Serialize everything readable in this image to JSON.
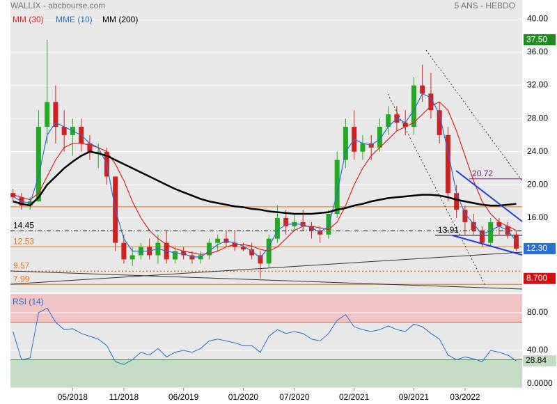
{
  "chart_data": {
    "type": "candlestick",
    "title": "WALLIX - abcbourse.com",
    "subtitle": "5 ANS - HEBDO",
    "xlim": [
      -0.3,
      59.7
    ],
    "xticks": [
      {
        "value": 7,
        "label": "05/2018"
      },
      {
        "value": 13,
        "label": "11/2018"
      },
      {
        "value": 20,
        "label": "06/2019"
      },
      {
        "value": 27,
        "label": "01/2020"
      },
      {
        "value": 33,
        "label": "07/2020"
      },
      {
        "value": 40,
        "label": "02/2021"
      },
      {
        "value": 47,
        "label": "09/2021"
      },
      {
        "value": 53,
        "label": "03/2022"
      }
    ],
    "ylim": [
      7.0,
      42.3
    ],
    "yticks": [
      {
        "value": 16,
        "label": "16.00"
      },
      {
        "value": 20,
        "label": "20.00"
      },
      {
        "value": 24,
        "label": "24.00"
      },
      {
        "value": 28,
        "label": "28.00"
      },
      {
        "value": 32,
        "label": "32.00"
      },
      {
        "value": 36,
        "label": "36.00"
      },
      {
        "value": 40,
        "label": "40.00"
      }
    ],
    "up_color": "#22aa22",
    "down_color": "#cc2222",
    "candles": [
      [
        19,
        19.5,
        18,
        18.5
      ],
      [
        18.5,
        19,
        17,
        17.5
      ],
      [
        17.5,
        18.5,
        17,
        18
      ],
      [
        18,
        29,
        18,
        27
      ],
      [
        27,
        37.5,
        25,
        30
      ],
      [
        30,
        32,
        25,
        27
      ],
      [
        27,
        29,
        24,
        26
      ],
      [
        26,
        28,
        23.5,
        27
      ],
      [
        27,
        28,
        24,
        25
      ],
      [
        25,
        26,
        23,
        24
      ],
      [
        24,
        25,
        22,
        24
      ],
      [
        24,
        24.5,
        20,
        21
      ],
      [
        21,
        21,
        12,
        13
      ],
      [
        13,
        14,
        10.5,
        11
      ],
      [
        11,
        12.5,
        10.2,
        11.5
      ],
      [
        11.5,
        13,
        11,
        12.5
      ],
      [
        12.5,
        13.5,
        11,
        11.5
      ],
      [
        11.5,
        14,
        10.5,
        13
      ],
      [
        13,
        14.5,
        10.5,
        11
      ],
      [
        11,
        12.5,
        10.5,
        12
      ],
      [
        12,
        12.5,
        11,
        11.5
      ],
      [
        11.5,
        12,
        10.5,
        11
      ],
      [
        11,
        12,
        10.5,
        11.5
      ],
      [
        11.5,
        13.5,
        11,
        13
      ],
      [
        13,
        14,
        12,
        13.5
      ],
      [
        13.5,
        14.5,
        12.5,
        13
      ],
      [
        13,
        14.5,
        12,
        12.5
      ],
      [
        12.5,
        13,
        12,
        12.2
      ],
      [
        12.2,
        13,
        11,
        11.5
      ],
      [
        11.5,
        12,
        8.7,
        10.5
      ],
      [
        10.5,
        14,
        10,
        13.5
      ],
      [
        13.5,
        17.5,
        13,
        16
      ],
      [
        16,
        17,
        14,
        15
      ],
      [
        15,
        16.5,
        14.5,
        15.5
      ],
      [
        15.5,
        17,
        14.5,
        15
      ],
      [
        15,
        15.5,
        13.5,
        14.5
      ],
      [
        14.5,
        15,
        13,
        14
      ],
      [
        14,
        17,
        13.5,
        16.5
      ],
      [
        16.5,
        24,
        16,
        23
      ],
      [
        23,
        28,
        22,
        27
      ],
      [
        27,
        29,
        23,
        24
      ],
      [
        24,
        26,
        23,
        25
      ],
      [
        25,
        26,
        23,
        24.5
      ],
      [
        24.5,
        28,
        24,
        27
      ],
      [
        27,
        29.5,
        26,
        28.5
      ],
      [
        28.5,
        29.5,
        26.5,
        27.5
      ],
      [
        27.5,
        29,
        26,
        27
      ],
      [
        27,
        33,
        26,
        32
      ],
      [
        32,
        34.5,
        30,
        31
      ],
      [
        31,
        33.5,
        28,
        29
      ],
      [
        29,
        30,
        25,
        26
      ],
      [
        26,
        27,
        18,
        19
      ],
      [
        19,
        20,
        16,
        17
      ],
      [
        17,
        17.5,
        14,
        15.5
      ],
      [
        15.5,
        16.5,
        14,
        14.5
      ],
      [
        14.5,
        15,
        12.5,
        13
      ],
      [
        13,
        16,
        12.5,
        15.5
      ],
      [
        15.5,
        16,
        14,
        15
      ],
      [
        15,
        15.5,
        13.5,
        14
      ],
      [
        14,
        14.5,
        12,
        12.3
      ]
    ],
    "series": [
      {
        "name": "MM (30)",
        "color": "#e02020",
        "values": [
          18.8,
          18.5,
          18.2,
          19,
          21,
          23,
          24.5,
          25,
          25,
          24.8,
          24.5,
          24,
          22.5,
          20.5,
          18,
          16,
          14.5,
          13.5,
          12.8,
          12.3,
          12,
          11.8,
          11.6,
          11.7,
          12,
          12.5,
          12.8,
          12.8,
          12.6,
          12.2,
          12,
          12.5,
          13.5,
          14.5,
          15,
          15,
          14.8,
          14.6,
          15.5,
          17.5,
          20,
          22,
          23.5,
          24.5,
          25.5,
          26.5,
          27,
          27.5,
          28.5,
          29.5,
          30,
          29,
          26.5,
          23.5,
          20.5,
          18,
          16.5,
          15.5,
          15,
          14.5
        ]
      },
      {
        "name": "MME (10)",
        "color": "#2a6fd0",
        "values": [
          18.6,
          18,
          17.8,
          21,
          26,
          27.5,
          27,
          26.5,
          26,
          25,
          24.5,
          22.5,
          17,
          13.5,
          12,
          12,
          12,
          12.3,
          12,
          11.8,
          11.7,
          11.3,
          11.3,
          12,
          12.8,
          13.2,
          13,
          12.6,
          12,
          11.2,
          12.5,
          14.5,
          15.2,
          15.3,
          15.2,
          14.8,
          14.3,
          15,
          19,
          24,
          25.5,
          25,
          24.8,
          25.5,
          27,
          28,
          27.5,
          29,
          31,
          30.5,
          28.5,
          24,
          19,
          16.5,
          15.3,
          14,
          14.5,
          15,
          14.5,
          13.2
        ]
      },
      {
        "name": "MM (200)",
        "color": "#000000",
        "values": [
          18,
          17.7,
          17.5,
          18.5,
          20,
          21,
          22,
          22.8,
          23.5,
          24,
          23.8,
          23.5,
          23,
          22.5,
          22,
          21.5,
          21,
          20.5,
          20,
          19.5,
          19.1,
          18.7,
          18.3,
          18,
          17.8,
          17.6,
          17.4,
          17.3,
          17.1,
          17,
          16.8,
          16.7,
          16.6,
          16.5,
          16.5,
          16.5,
          16.6,
          16.7,
          17,
          17.2,
          17.5,
          17.7,
          18,
          18.2,
          18.4,
          18.5,
          18.6,
          18.7,
          18.8,
          18.8,
          18.7,
          18.5,
          18.2,
          18,
          17.8,
          17.6,
          17.5,
          17.5,
          17.6,
          17.7
        ]
      }
    ],
    "levels": [
      {
        "value": 17.35,
        "color": "#e07a10",
        "style": "solid"
      },
      {
        "value": 14.45,
        "color": "#000000",
        "style": "dashdot",
        "label": "14.45"
      },
      {
        "value": 12.53,
        "color": "#e07a10",
        "style": "solid",
        "label": "12.53"
      },
      {
        "value": 9.57,
        "color": "#e07a10",
        "style": "dotted",
        "label": "9.57"
      },
      {
        "value": 7.99,
        "color": "#e07a10",
        "style": "solid",
        "label": "7.99"
      }
    ],
    "short_levels": [
      {
        "value": 13.91,
        "color": "#000000",
        "label": "13.91",
        "from": 49.5
      },
      {
        "value": 20.72,
        "color": "#7a1f7a",
        "label": "20.72",
        "from": 53.5
      }
    ],
    "price_tags": [
      {
        "value": 37.5,
        "label": "37.50",
        "color": "#1f8a1f"
      },
      {
        "value": 12.3,
        "label": "12.30",
        "color": "#2a6fd0"
      },
      {
        "value": 8.7,
        "label": "8.700",
        "color": "#d01010"
      }
    ],
    "rsi": {
      "name": "RSI (14)",
      "color": "#2a6fd0",
      "ylim": [
        0,
        100
      ],
      "yticks": [
        {
          "value": 0,
          "label": "0.0000"
        },
        {
          "value": 40,
          "label": "40.00"
        },
        {
          "value": 80,
          "label": "80.00"
        }
      ],
      "overbought": 70,
      "oversold": 30,
      "values": [
        60,
        30,
        32,
        80,
        85,
        70,
        62,
        63,
        58,
        55,
        52,
        45,
        28,
        25,
        30,
        38,
        35,
        42,
        33,
        38,
        40,
        38,
        42,
        50,
        52,
        50,
        48,
        45,
        45,
        38,
        55,
        62,
        58,
        60,
        58,
        52,
        50,
        58,
        72,
        78,
        65,
        62,
        60,
        62,
        66,
        62,
        60,
        68,
        65,
        58,
        52,
        35,
        30,
        33,
        31,
        28,
        40,
        38,
        35,
        28.84
      ],
      "last_label": "28.84"
    }
  }
}
